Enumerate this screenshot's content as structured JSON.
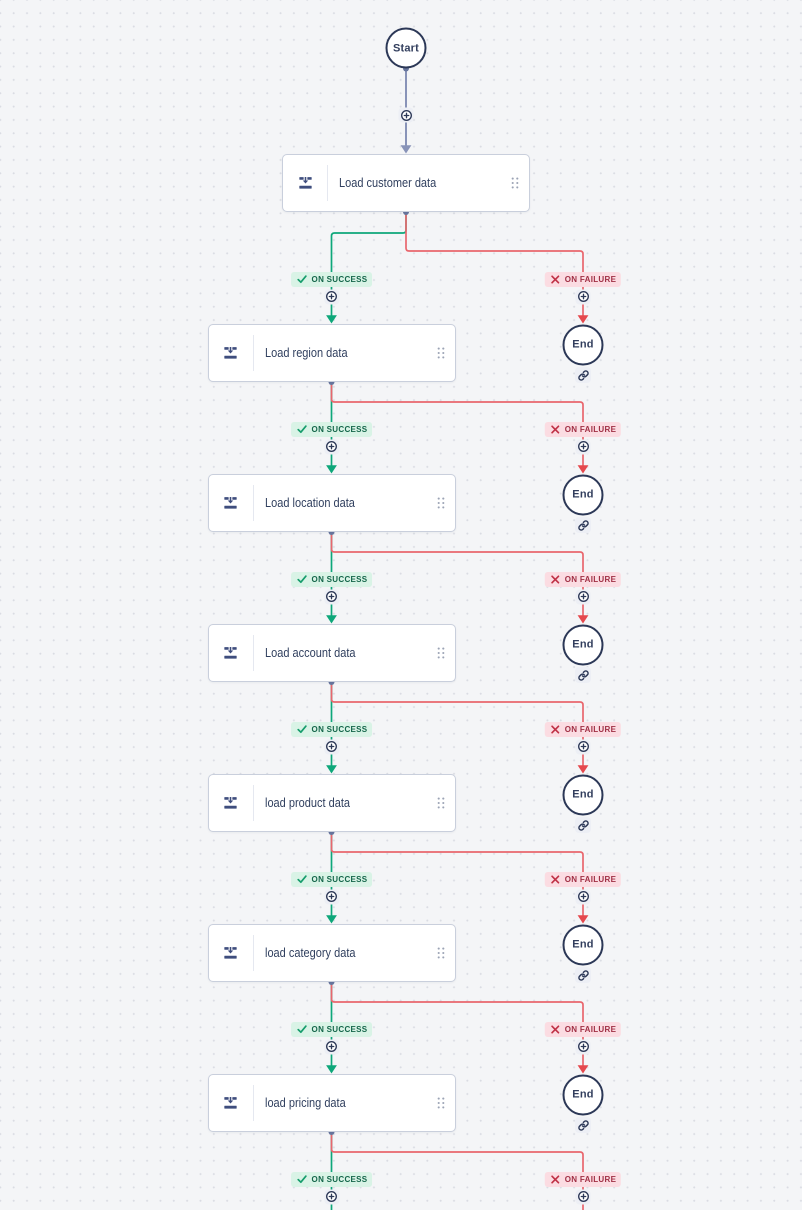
{
  "canvas": {
    "background": "#f4f5f7",
    "dot_color": "#d6d8df"
  },
  "start": {
    "label": "Start"
  },
  "end": {
    "label": "End"
  },
  "badges": {
    "success_label": "ON SUCCESS",
    "failure_label": "ON FAILURE"
  },
  "tasks": [
    {
      "label": "Load customer data"
    },
    {
      "label": "Load region data"
    },
    {
      "label": "Load location data"
    },
    {
      "label": "Load account data"
    },
    {
      "label": "load product data"
    },
    {
      "label": "load category data"
    },
    {
      "label": "load pricing data"
    }
  ],
  "colors": {
    "success_edge": "#0ea77a",
    "failure_edge": "#e9666d",
    "failure_arrow": "#e5484d",
    "plain_edge": "#8893b8",
    "port_dot": "#68769e",
    "navy": "#2c3857",
    "node_icon": "#3e4d7d",
    "success_badge_bg": "#d9f3e6",
    "success_badge_text": "#14664a",
    "success_check": "#169d6c",
    "failure_badge_bg": "#fbdce2",
    "failure_badge_text": "#a02f44",
    "failure_x": "#c03247"
  }
}
